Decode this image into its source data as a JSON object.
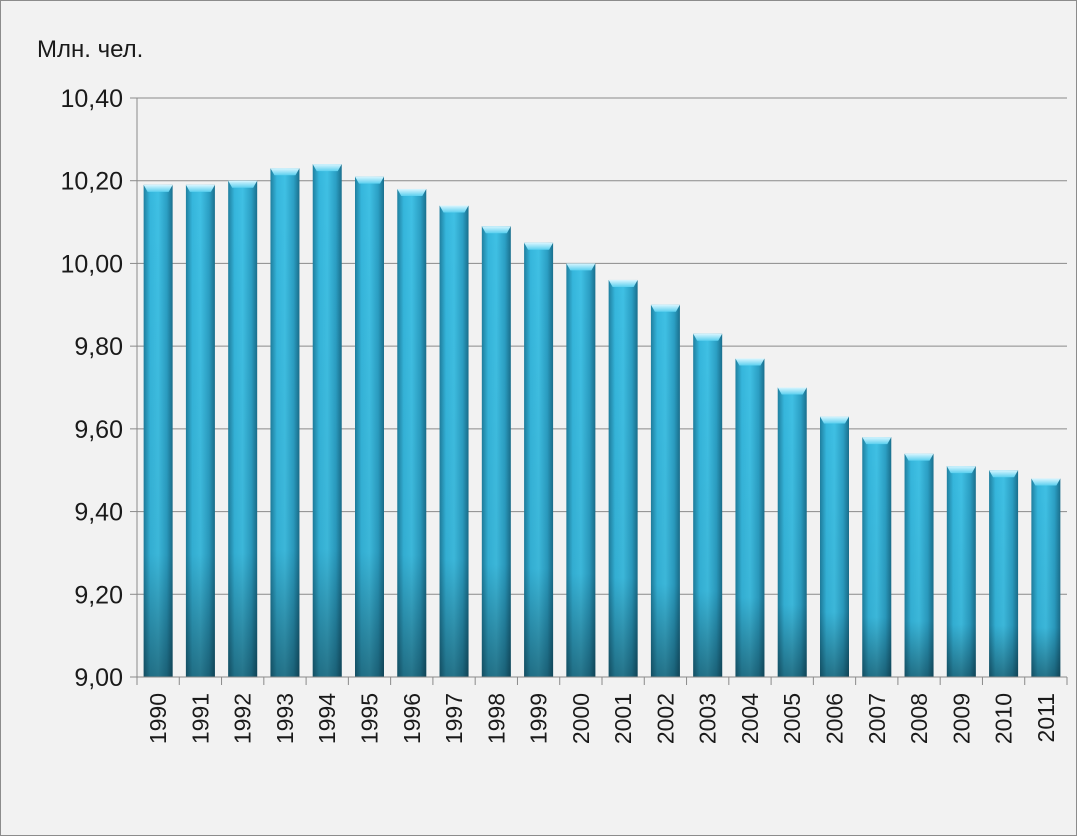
{
  "chart_data": {
    "type": "bar",
    "title": "",
    "xlabel": "",
    "ylabel": "Млн. чел.",
    "ylim": [
      9.0,
      10.4
    ],
    "yticks": [
      "9,00",
      "9,20",
      "9,40",
      "9,60",
      "9,80",
      "10,00",
      "10,20",
      "10,40"
    ],
    "grid": true,
    "legend": "none",
    "bar_color": "#2aa3c9",
    "categories": [
      "1990",
      "1991",
      "1992",
      "1993",
      "1994",
      "1995",
      "1996",
      "1997",
      "1998",
      "1999",
      "2000",
      "2001",
      "2002",
      "2003",
      "2004",
      "2005",
      "2006",
      "2007",
      "2008",
      "2009",
      "2010",
      "2011"
    ],
    "values": [
      10.19,
      10.19,
      10.2,
      10.23,
      10.24,
      10.21,
      10.18,
      10.14,
      10.09,
      10.05,
      10.0,
      9.96,
      9.9,
      9.83,
      9.77,
      9.7,
      9.63,
      9.58,
      9.54,
      9.51,
      9.5,
      9.48
    ]
  }
}
